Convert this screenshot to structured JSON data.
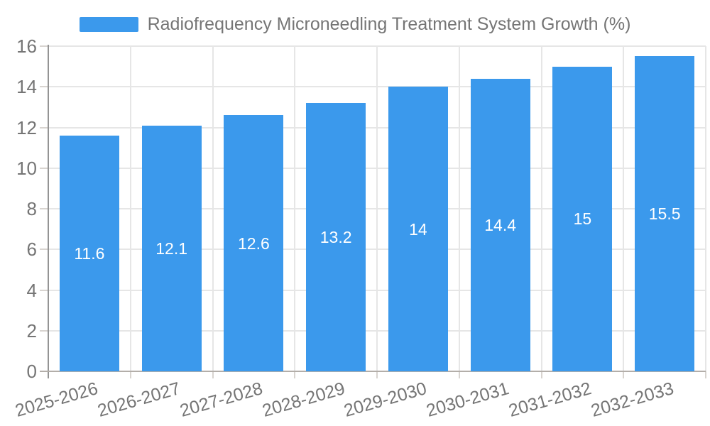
{
  "chart_data": {
    "type": "bar",
    "title": "Radiofrequency Microneedling Treatment System Growth (%)",
    "legend_position": "top",
    "categories": [
      "2025-2026",
      "2026-2027",
      "2027-2028",
      "2028-2029",
      "2029-2030",
      "2030-2031",
      "2031-2032",
      "2032-2033"
    ],
    "series": [
      {
        "name": "Radiofrequency Microneedling Treatment System Growth (%)",
        "values": [
          11.6,
          12.1,
          12.6,
          13.2,
          14,
          14.4,
          15,
          15.5
        ],
        "data_labels": [
          "11.6",
          "12.1",
          "12.6",
          "13.2",
          "14",
          "14.4",
          "15",
          "15.5"
        ]
      }
    ],
    "xlabel": "",
    "ylabel": "",
    "ylim": [
      0,
      16
    ],
    "yticks": [
      0,
      2,
      4,
      6,
      8,
      10,
      12,
      14,
      16
    ],
    "grid": true,
    "colors": {
      "bar": "#3B99EC",
      "gridline": "#E6E6E6",
      "tick": "#D8D4D0",
      "y_axis_line": "#949494",
      "x_axis_line": "#B3AEA9",
      "axis_text": "#757575",
      "value_label_text": "#FFFFFF"
    }
  }
}
